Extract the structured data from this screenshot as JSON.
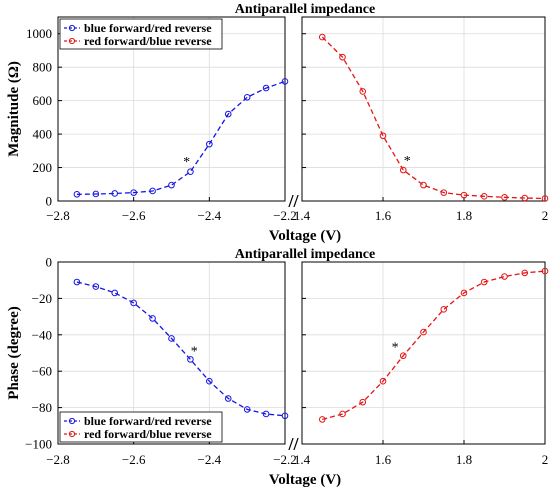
{
  "figure": {
    "colors": {
      "blue": "#1515e6",
      "red": "#e61515",
      "frame": "#000000",
      "grid": "#dcdcdc"
    }
  },
  "chart_data": [
    {
      "type": "line",
      "title": "Antiparallel impedance",
      "xlabel": "Voltage (V)",
      "ylabel": "Magnitude (Ω)",
      "ylim": [
        0,
        1100
      ],
      "yticks": [
        0,
        200,
        400,
        600,
        800,
        1000
      ],
      "grid": true,
      "legend": "top-left",
      "break_mark": "//",
      "panels": [
        {
          "xlim": [
            -2.8,
            -2.2
          ],
          "xticks": [
            -2.8,
            -2.6,
            -2.4,
            -2.2
          ],
          "xtick_labels": [
            "-2.8",
            "-2.6",
            "-2.4",
            "-2.2"
          ],
          "series": [
            {
              "name": "blue forward/red reverse",
              "color": "blue",
              "x": [
                -2.75,
                -2.7,
                -2.65,
                -2.6,
                -2.55,
                -2.5,
                -2.45,
                -2.4,
                -2.35,
                -2.3,
                -2.25,
                -2.2
              ],
              "y": [
                40,
                42,
                45,
                50,
                60,
                95,
                175,
                340,
                520,
                620,
                675,
                715
              ]
            }
          ],
          "annotations": [
            {
              "text": "*",
              "x": -2.46,
              "y": 245
            }
          ]
        },
        {
          "xlim": [
            1.4,
            2.0
          ],
          "xticks": [
            1.4,
            1.6,
            1.8,
            2.0
          ],
          "xtick_labels": [
            "1.4",
            "1.6",
            "1.8",
            "2"
          ],
          "series": [
            {
              "name": "red forward/blue reverse",
              "color": "red",
              "x": [
                1.45,
                1.5,
                1.55,
                1.6,
                1.65,
                1.7,
                1.75,
                1.8,
                1.85,
                1.9,
                1.95,
                2.0
              ],
              "y": [
                980,
                860,
                655,
                390,
                185,
                95,
                50,
                35,
                28,
                22,
                18,
                15
              ]
            }
          ],
          "annotations": [
            {
              "text": "*",
              "x": 1.66,
              "y": 250
            }
          ]
        }
      ]
    },
    {
      "type": "line",
      "title": "Antiparallel impedance",
      "xlabel": "Voltage (V)",
      "ylabel": "Phase (degree)",
      "ylim": [
        -100,
        0
      ],
      "yticks": [
        -100,
        -80,
        -60,
        -40,
        -20,
        0
      ],
      "grid": true,
      "legend": "bottom-left",
      "break_mark": "//",
      "panels": [
        {
          "xlim": [
            -2.8,
            -2.2
          ],
          "xticks": [
            -2.8,
            -2.6,
            -2.4,
            -2.2
          ],
          "xtick_labels": [
            "-2.8",
            "-2.6",
            "-2.4",
            "-2.2"
          ],
          "series": [
            {
              "name": "blue forward/red reverse",
              "color": "blue",
              "x": [
                -2.75,
                -2.7,
                -2.65,
                -2.6,
                -2.55,
                -2.5,
                -2.45,
                -2.4,
                -2.35,
                -2.3,
                -2.25,
                -2.2
              ],
              "y": [
                -11,
                -13.5,
                -17,
                -22.5,
                -31,
                -42,
                -53.5,
                -65.5,
                -75,
                -81,
                -83.5,
                -84.5
              ]
            }
          ],
          "annotations": [
            {
              "text": "*",
              "x": -2.44,
              "y": -48
            }
          ]
        },
        {
          "xlim": [
            1.4,
            2.0
          ],
          "xticks": [
            1.4,
            1.6,
            1.8,
            2.0
          ],
          "xtick_labels": [
            "1.4",
            "1.6",
            "1.8",
            "2"
          ],
          "series": [
            {
              "name": "red forward/blue reverse",
              "color": "red",
              "x": [
                1.45,
                1.5,
                1.55,
                1.6,
                1.65,
                1.7,
                1.75,
                1.8,
                1.85,
                1.9,
                1.95,
                2.0
              ],
              "y": [
                -86.5,
                -83.5,
                -77,
                -65.5,
                -51.5,
                -38.5,
                -26,
                -17,
                -11,
                -8,
                -6,
                -5
              ]
            }
          ],
          "annotations": [
            {
              "text": "*",
              "x": 1.63,
              "y": -46
            }
          ]
        }
      ]
    }
  ]
}
